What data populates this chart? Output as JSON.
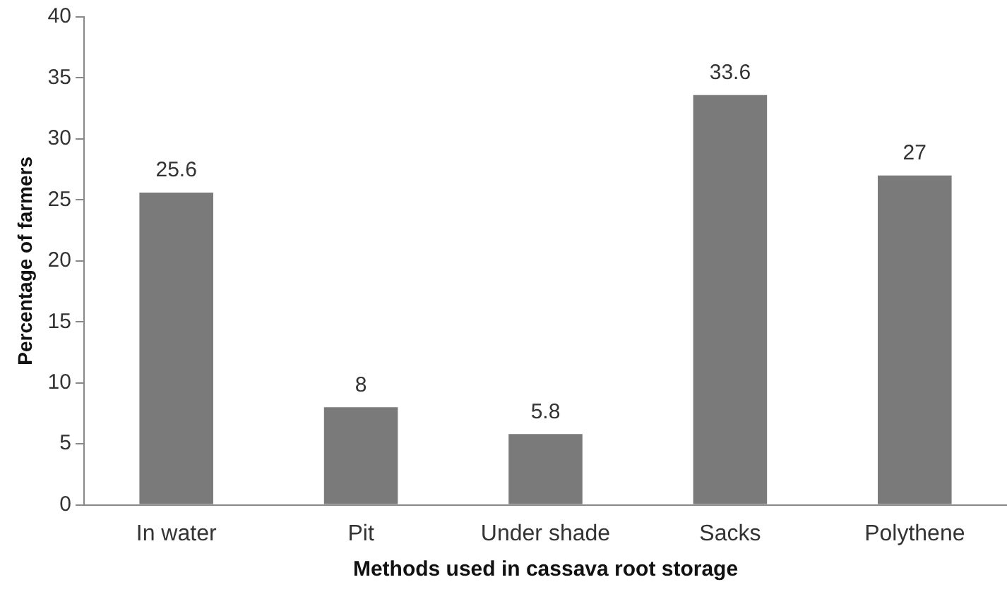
{
  "chart_data": {
    "type": "bar",
    "xlabel": "Methods used in cassava root storage",
    "ylabel": "Percentage of farmers",
    "categories": [
      "In water",
      "Pit",
      "Under shade",
      "Sacks",
      "Polythene"
    ],
    "values": [
      25.6,
      8,
      5.8,
      33.6,
      27
    ],
    "color": "#7a7a7a",
    "ylim": [
      0,
      40
    ],
    "yticks": [
      0,
      5,
      10,
      15,
      20,
      25,
      30,
      35,
      40
    ],
    "grid": false,
    "data_labels": true
  }
}
